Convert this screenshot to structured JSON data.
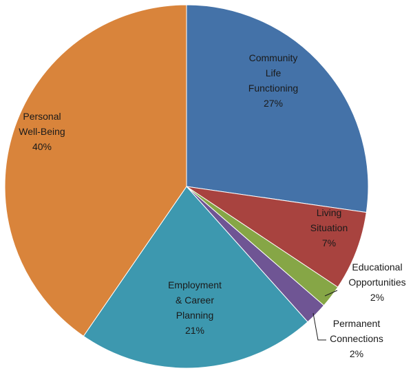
{
  "chart_data": {
    "type": "pie",
    "title": "",
    "slices": [
      {
        "label": [
          "Community",
          "Life",
          "Functioning"
        ],
        "value": 27,
        "value_label": "27%",
        "color": "#4472A8"
      },
      {
        "label": [
          "Living",
          "Situation"
        ],
        "value": 7,
        "value_label": "7%",
        "color": "#A8433F"
      },
      {
        "label": [
          "Educational",
          "Opportunities"
        ],
        "value": 2,
        "value_label": "2%",
        "color": "#86A646"
      },
      {
        "label": [
          "Permanent",
          "Connections"
        ],
        "value": 2,
        "value_label": "2%",
        "color": "#6F5594"
      },
      {
        "label": [
          "Employment",
          "& Career",
          "Planning"
        ],
        "value": 21,
        "value_label": "21%",
        "color": "#3D98AF"
      },
      {
        "label": [
          "Personal",
          "Well-Being"
        ],
        "value": 40,
        "value_label": "40%",
        "color": "#D9843B"
      }
    ],
    "start_angle_deg": 0,
    "direction": "clockwise",
    "legend": "none"
  }
}
